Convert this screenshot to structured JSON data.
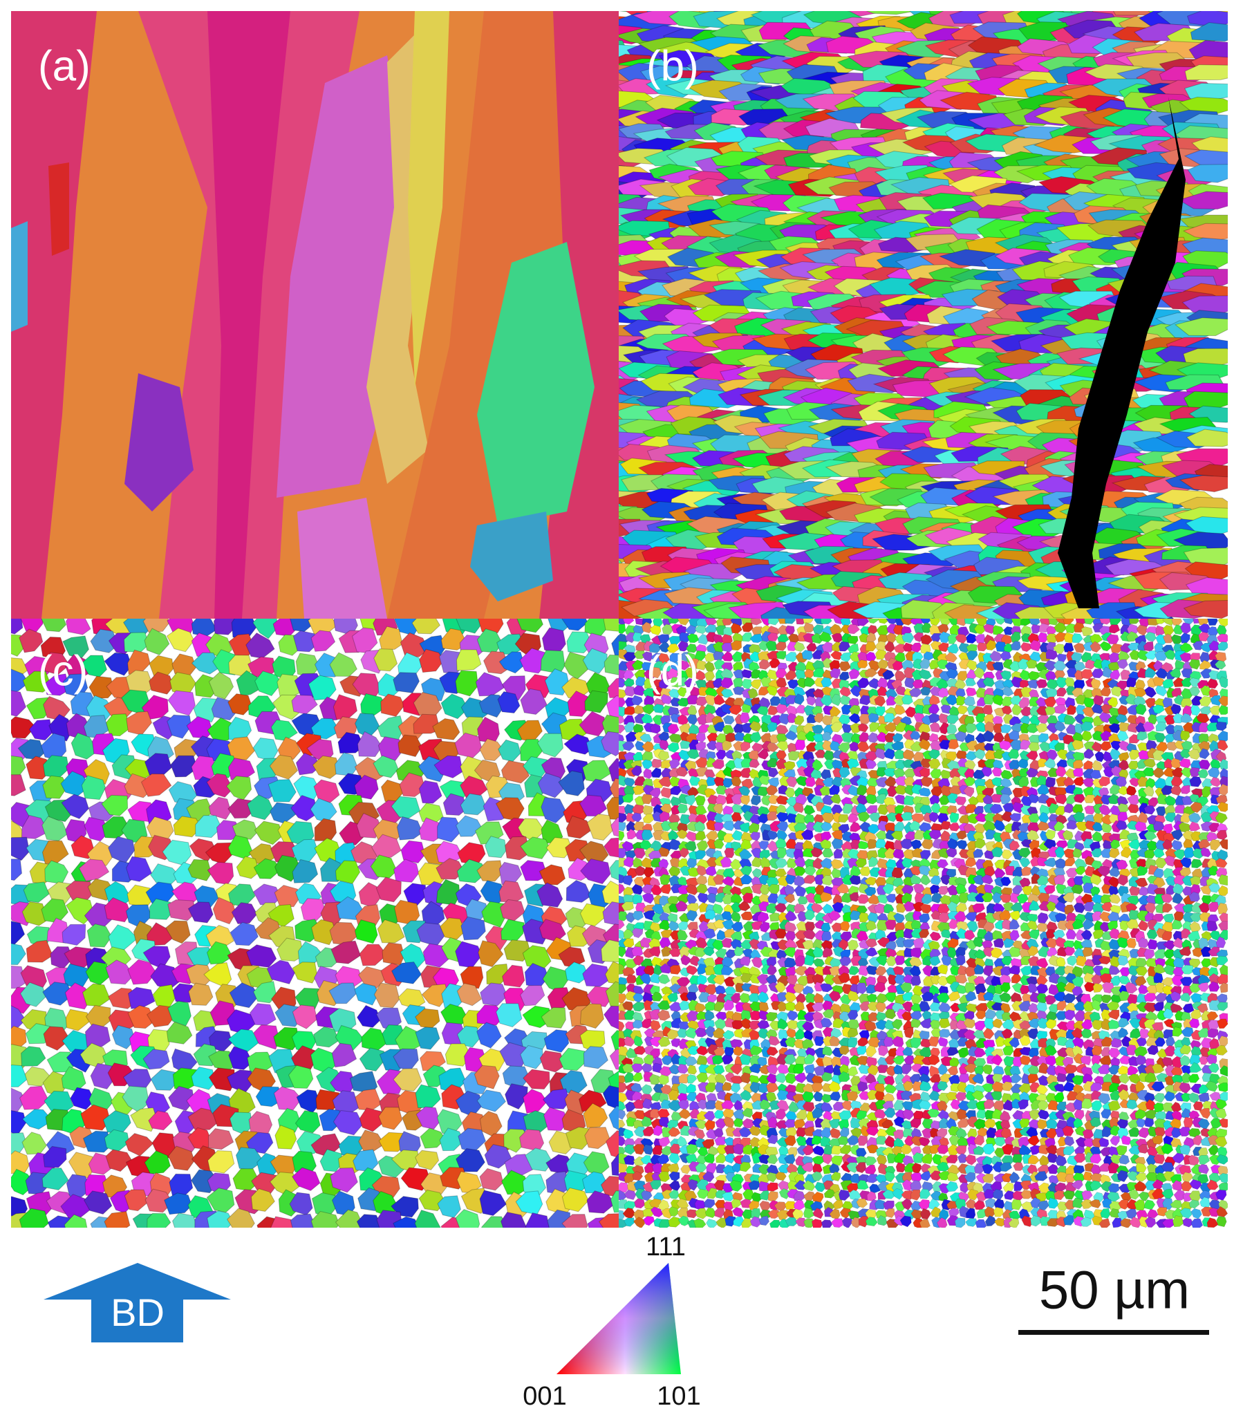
{
  "panels": [
    {
      "label": "(a)"
    },
    {
      "label": "(b)"
    },
    {
      "label": "(c)"
    },
    {
      "label": "(d)"
    }
  ],
  "build_direction": {
    "label": "BD"
  },
  "ipf_legend": {
    "top": "111",
    "left": "001",
    "right": "101"
  },
  "scale_bar": {
    "label": "50 µm"
  }
}
